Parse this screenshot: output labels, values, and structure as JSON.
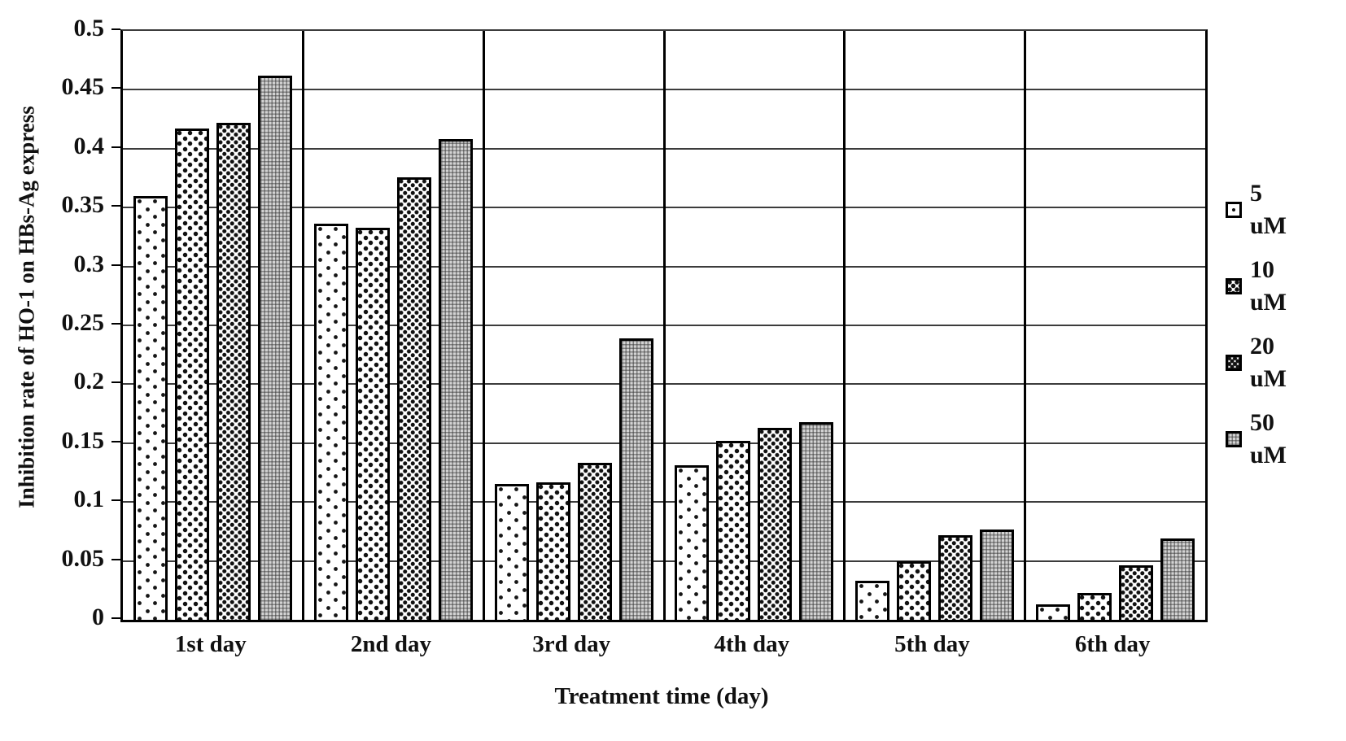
{
  "chart_data": {
    "type": "bar",
    "title": "",
    "xlabel": "Treatment time (day)",
    "ylabel": "Inhibition rate of HO-1 on HBs-Ag express",
    "categories": [
      "1st day",
      "2nd day",
      "3rd day",
      "4th day",
      "5th day",
      "6th day"
    ],
    "series": [
      {
        "name": "5 uM",
        "pattern": "sparse-dots",
        "values": [
          0.36,
          0.336,
          0.115,
          0.131,
          0.033,
          0.013
        ]
      },
      {
        "name": "10 uM",
        "pattern": "medium-dots",
        "values": [
          0.417,
          0.333,
          0.117,
          0.152,
          0.05,
          0.023
        ]
      },
      {
        "name": "20 uM",
        "pattern": "dense-dots",
        "values": [
          0.422,
          0.376,
          0.133,
          0.163,
          0.072,
          0.046
        ]
      },
      {
        "name": "50 uM",
        "pattern": "gray-weave",
        "values": [
          0.462,
          0.408,
          0.239,
          0.168,
          0.077,
          0.069
        ]
      }
    ],
    "ylim": [
      0,
      0.5
    ],
    "ytick_step": 0.05,
    "ytick_labels": [
      "0.5",
      "0.45",
      "0.4",
      "0.35",
      "0.3",
      "0.25",
      "0.2",
      "0.15",
      "0.1",
      "0.05",
      "0"
    ],
    "grid": "horizontal gridlines every 0.05; vertical separators between day groups",
    "legend_position": "right",
    "bar_fill_colors": {
      "outline": "#000000",
      "dots": "#111111",
      "gray_fill": "#c2c2c2"
    }
  }
}
